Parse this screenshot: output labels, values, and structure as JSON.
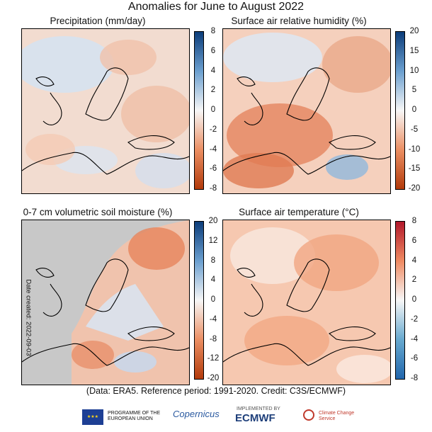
{
  "title": "Anomalies for June to August 2022",
  "panels": [
    {
      "title": "Precipitation (mm/day)",
      "colorbar": {
        "ticks": [
          "8",
          "6",
          "4",
          "2",
          "0",
          "-2",
          "-4",
          "-6",
          "-8"
        ],
        "palette": "brown-white-blue"
      }
    },
    {
      "title": "Surface air relative humidity (%)",
      "colorbar": {
        "ticks": [
          "20",
          "15",
          "10",
          "5",
          "0",
          "-5",
          "-10",
          "-15",
          "-20"
        ],
        "palette": "brown-white-blue"
      }
    },
    {
      "title": "0-7 cm volumetric soil moisture (%)",
      "colorbar": {
        "ticks": [
          "20",
          "12",
          "8",
          "4",
          "0",
          "-4",
          "-8",
          "-12",
          "-20"
        ],
        "palette": "brown-white-blue"
      }
    },
    {
      "title": "Surface air temperature (°C)",
      "colorbar": {
        "ticks": [
          "8",
          "6",
          "4",
          "2",
          "0",
          "-2",
          "-4",
          "-6",
          "-8"
        ],
        "palette": "blue-white-red"
      }
    }
  ],
  "date_created": "Date created: 2022-09-03",
  "credit": "(Data: ERA5.  Reference period: 1991-2020.  Credit: C3S/ECMWF)",
  "logos": {
    "eu": "PROGRAMME OF THE EUROPEAN UNION",
    "copernicus": "Copernicus",
    "implemented": "IMPLEMENTED BY",
    "ecmwf": "ECMWF",
    "c3s": "Climate Change Service"
  },
  "colors": {
    "dry": "#c8501e",
    "wet": "#2a5da8",
    "warm": "#e0623a",
    "cold": "#3a6cb0",
    "land_mask": "#c8c8c8"
  }
}
